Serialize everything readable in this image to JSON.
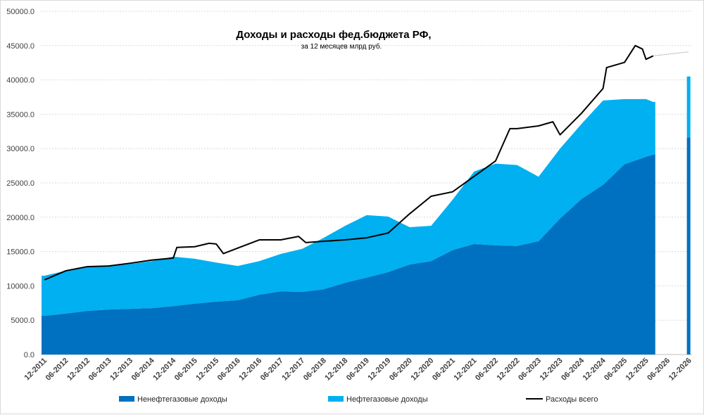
{
  "chart_data": {
    "type": "area",
    "title": "Доходы и расходы фед.бюджета РФ,",
    "subtitle": "за 12 месяцев млрд руб.",
    "xlabel": "",
    "ylabel": "",
    "ylim": [
      0,
      50000
    ],
    "yticks": [
      "0.0",
      "5000.0",
      "10000.0",
      "15000.0",
      "20000.0",
      "25000.0",
      "30000.0",
      "35000.0",
      "40000.0",
      "45000.0",
      "50000.0"
    ],
    "xticks": [
      "12-2011",
      "06-2012",
      "12-2012",
      "06-2013",
      "12-2013",
      "06-2014",
      "12-2014",
      "06-2015",
      "12-2015",
      "06-2016",
      "12-2016",
      "06-2017",
      "12-2017",
      "06-2018",
      "12-2018",
      "06-2019",
      "12-2019",
      "06-2020",
      "12-2020",
      "06-2021",
      "12-2021",
      "06-2022",
      "12-2022",
      "06-2023",
      "12-2023",
      "06-2024",
      "12-2024",
      "06-2025",
      "12-2025",
      "06-2026",
      "12-2026"
    ],
    "grid": true,
    "legend_position": "bottom",
    "colors": {
      "non_oil": "#0070C0",
      "oil_gas": "#00B0F0",
      "expenses": "#000000",
      "forecast_line": "#a6a6a6"
    },
    "x": [
      "12-2011",
      "06-2012",
      "12-2012",
      "06-2013",
      "12-2013",
      "06-2014",
      "12-2014",
      "06-2015",
      "12-2015",
      "06-2016",
      "12-2016",
      "06-2017",
      "12-2017",
      "06-2018",
      "12-2018",
      "06-2019",
      "12-2019",
      "06-2020",
      "12-2020",
      "06-2021",
      "12-2021",
      "06-2022",
      "12-2022",
      "06-2023",
      "12-2023",
      "06-2024",
      "12-2024",
      "06-2025",
      "12-2025",
      "02-2026"
    ],
    "series": [
      {
        "name": "Ненефтегазовые доходы",
        "stack": "bottom",
        "values": [
          5640,
          5950,
          6350,
          6550,
          6650,
          6750,
          7050,
          7400,
          7700,
          7900,
          8700,
          9200,
          9100,
          9500,
          10450,
          11200,
          12000,
          13100,
          13600,
          15200,
          16100,
          15900,
          15800,
          16500,
          19800,
          22650,
          24700,
          27700,
          28800,
          29100
        ]
      },
      {
        "name": "Нефтегазовые доходы",
        "stack": "top",
        "note_total": false,
        "values": [
          5840,
          6250,
          6450,
          6350,
          6550,
          6850,
          7200,
          6550,
          5700,
          5000,
          4900,
          5450,
          6300,
          7500,
          8300,
          9100,
          8100,
          5450,
          5150,
          7350,
          10550,
          11900,
          11800,
          9400,
          10200,
          10950,
          12300,
          9500,
          8400,
          7700
        ]
      }
    ],
    "expenses": {
      "name": "Расходы всего",
      "x": [
        "12-2011",
        "06-2012",
        "12-2012",
        "06-2013",
        "12-2013",
        "06-2014",
        "12-2014",
        "01-2015",
        "06-2015",
        "10-2015",
        "12-2015",
        "02-2016",
        "06-2016",
        "12-2016",
        "06-2017",
        "11-2017",
        "01-2018",
        "06-2018",
        "12-2018",
        "06-2019",
        "12-2019",
        "06-2020",
        "12-2020",
        "06-2021",
        "12-2021",
        "06-2022",
        "10-2022",
        "12-2022",
        "06-2023",
        "10-2023",
        "12-2023",
        "06-2024",
        "12-2024",
        "01-2025",
        "06-2025",
        "09-2025",
        "11-2025",
        "12-2025",
        "02-2026"
      ],
      "values": [
        10870,
        12200,
        12800,
        12900,
        13300,
        13750,
        14050,
        15600,
        15700,
        16200,
        16100,
        14700,
        15500,
        16700,
        16700,
        17200,
        16300,
        16500,
        16700,
        17000,
        17700,
        20500,
        23050,
        23700,
        25950,
        28200,
        32900,
        32900,
        33300,
        33900,
        32000,
        35150,
        38750,
        41800,
        42550,
        45000,
        44500,
        43000,
        43500
      ]
    },
    "forecast": {
      "x": "12-2026",
      "non_oil": 31600,
      "oil_gas": 8900,
      "expenses_line": {
        "x": [
          "02-2026",
          "12-2026"
        ],
        "values": [
          43500,
          44100
        ]
      }
    }
  },
  "legend": {
    "non_oil": "Ненефтегазовые доходы",
    "oil_gas": "Нефтегазовые доходы",
    "expenses": "Расходы всего"
  }
}
